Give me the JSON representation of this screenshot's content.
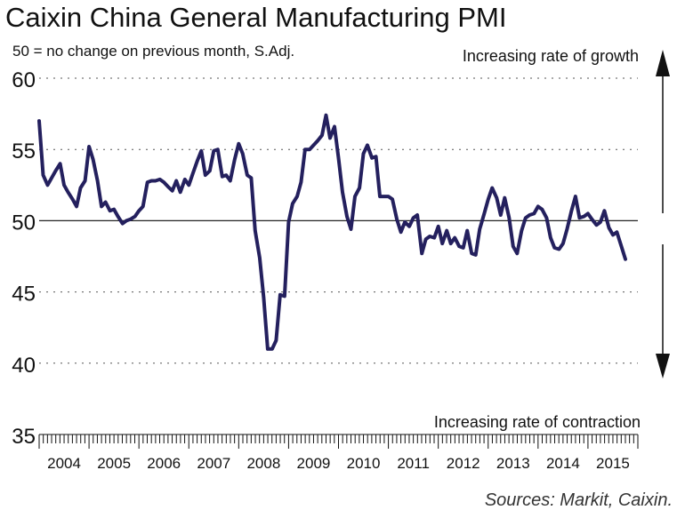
{
  "title": "Caixin China General Manufacturing PMI",
  "subtitle": "50 = no change on previous month, S.Adj.",
  "source": "Sources: Markit, Caixin.",
  "colors": {
    "line": "#24205e",
    "grid": "#555555",
    "text": "#111111"
  },
  "chart_data": {
    "type": "line",
    "title": "Caixin China General Manufacturing PMI",
    "ylim": [
      35,
      60
    ],
    "y_ticks": [
      35,
      40,
      45,
      50,
      55,
      60
    ],
    "x_years": [
      "2004",
      "2005",
      "2006",
      "2007",
      "2008",
      "2009",
      "2010",
      "2011",
      "2012",
      "2013",
      "2014",
      "2015"
    ],
    "x_range": [
      2004.0,
      2016.0
    ],
    "grid": "dotted horizontal at 40, 45, 55, 60; solid reference at 50",
    "annotations": {
      "growth": "Increasing rate of growth",
      "contraction": "Increasing rate of contraction"
    },
    "series": [
      {
        "x": [
          2004.0,
          2004.08,
          2004.17,
          2004.25,
          2004.33,
          2004.42,
          2004.5,
          2004.58,
          2004.67,
          2004.75,
          2004.83,
          2004.92,
          2005.0,
          2005.08,
          2005.17,
          2005.25,
          2005.33,
          2005.42,
          2005.5,
          2005.58,
          2005.67,
          2005.75,
          2005.83,
          2005.92,
          2006.0,
          2006.08,
          2006.17,
          2006.25,
          2006.33,
          2006.42,
          2006.5,
          2006.58,
          2006.67,
          2006.75,
          2006.83,
          2006.92,
          2007.0,
          2007.08,
          2007.17,
          2007.25,
          2007.33,
          2007.42,
          2007.5,
          2007.58,
          2007.67,
          2007.75,
          2007.83,
          2007.92,
          2008.0,
          2008.08,
          2008.17,
          2008.25,
          2008.33,
          2008.42,
          2008.5,
          2008.58,
          2008.67,
          2008.75,
          2008.83,
          2008.92,
          2009.0,
          2009.08,
          2009.17,
          2009.25,
          2009.33,
          2009.42,
          2009.5,
          2009.58,
          2009.67,
          2009.75,
          2009.83,
          2009.92,
          2010.0,
          2010.08,
          2010.17,
          2010.25,
          2010.33,
          2010.42,
          2010.5,
          2010.58,
          2010.67,
          2010.75,
          2010.83,
          2010.92,
          2011.0,
          2011.08,
          2011.17,
          2011.25,
          2011.33,
          2011.42,
          2011.5,
          2011.58,
          2011.67,
          2011.75,
          2011.83,
          2011.92,
          2012.0,
          2012.08,
          2012.17,
          2012.25,
          2012.33,
          2012.42,
          2012.5,
          2012.58,
          2012.67,
          2012.75,
          2012.83,
          2012.92,
          2013.0,
          2013.08,
          2013.17,
          2013.25,
          2013.33,
          2013.42,
          2013.5,
          2013.58,
          2013.67,
          2013.75,
          2013.83,
          2013.92,
          2014.0,
          2014.08,
          2014.17,
          2014.25,
          2014.33,
          2014.42,
          2014.5,
          2014.58,
          2014.67,
          2014.75,
          2014.83,
          2014.92,
          2015.0,
          2015.08,
          2015.17,
          2015.25,
          2015.33,
          2015.42,
          2015.5,
          2015.58,
          2015.67,
          2015.75
        ],
        "values": [
          57.0,
          53.2,
          52.5,
          53.0,
          53.5,
          54.0,
          52.5,
          52.0,
          51.5,
          51.0,
          52.3,
          52.8,
          55.2,
          54.3,
          52.8,
          51.0,
          51.3,
          50.7,
          50.8,
          50.3,
          49.8,
          50.0,
          50.1,
          50.3,
          50.7,
          51.0,
          52.7,
          52.8,
          52.8,
          52.9,
          52.7,
          52.4,
          52.1,
          52.8,
          52.0,
          52.9,
          52.5,
          53.3,
          54.2,
          54.9,
          53.2,
          53.5,
          54.9,
          55.0,
          53.1,
          53.2,
          52.8,
          54.3,
          55.4,
          54.7,
          53.2,
          53.0,
          49.3,
          47.4,
          44.6,
          41.0,
          41.0,
          41.6,
          44.8,
          44.7,
          49.9,
          51.2,
          51.7,
          52.7,
          55.0,
          55.0,
          55.3,
          55.6,
          56.0,
          57.4,
          55.8,
          56.6,
          54.4,
          52.0,
          50.3,
          49.4,
          51.7,
          52.3,
          54.7,
          55.3,
          54.4,
          54.5,
          51.7,
          51.7,
          51.7,
          51.5,
          50.1,
          49.2,
          49.9,
          49.6,
          50.2,
          50.4,
          47.7,
          48.7,
          48.9,
          48.8,
          49.6,
          48.4,
          49.3,
          48.4,
          48.8,
          48.2,
          48.1,
          49.3,
          47.7,
          47.6,
          49.4,
          50.5,
          51.5,
          52.3,
          51.6,
          50.4,
          51.6,
          50.2,
          48.2,
          47.7,
          49.3,
          50.2,
          50.4,
          50.5,
          51.0,
          50.8,
          50.2,
          48.8,
          48.1,
          48.0,
          48.4,
          49.4,
          50.7,
          51.7,
          50.2,
          50.3,
          50.5,
          50.1,
          49.7,
          49.9,
          50.7,
          49.5,
          49.0,
          49.2,
          48.2,
          47.3
        ]
      }
    ]
  }
}
